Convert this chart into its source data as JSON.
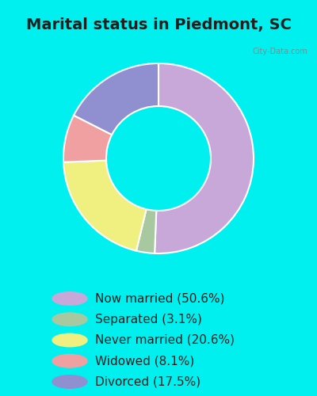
{
  "title": "Marital status in Piedmont, SC",
  "slices": [
    50.6,
    3.1,
    20.6,
    8.1,
    17.5
  ],
  "labels": [
    "Now married (50.6%)",
    "Separated (3.1%)",
    "Never married (20.6%)",
    "Widowed (8.1%)",
    "Divorced (17.5%)"
  ],
  "colors": [
    "#c8a8d8",
    "#a8c8a0",
    "#f0f080",
    "#f0a0a0",
    "#9090d0"
  ],
  "legend_colors": [
    "#c8a8d8",
    "#a8c8a0",
    "#f0f080",
    "#f0a0a0",
    "#9090d0"
  ],
  "bg_color_top": "#00f0f0",
  "bg_color_chart": "#e8f5e8",
  "bg_color_legend": "#00f0f0",
  "title_fontsize": 14,
  "title_color": "#202020",
  "legend_fontsize": 11,
  "watermark": "City-Data.com",
  "figsize": [
    4.0,
    5.0
  ],
  "dpi": 100
}
